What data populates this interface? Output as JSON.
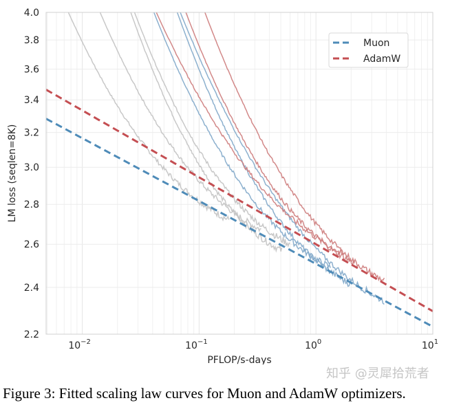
{
  "chart_data": {
    "type": "line",
    "xlabel": "PFLOP/s-days",
    "ylabel": "LM loss (seqlen=8K)",
    "xscale": "log",
    "yscale": "log",
    "xlim": [
      0.0049,
      10
    ],
    "ylim": [
      2.2,
      4.0
    ],
    "x_ticks": [
      {
        "base": "10",
        "exp": "−2",
        "value": 0.01
      },
      {
        "base": "10",
        "exp": "−1",
        "value": 0.1
      },
      {
        "base": "10",
        "exp": "0",
        "value": 1
      },
      {
        "base": "10",
        "exp": "1",
        "value": 10
      }
    ],
    "y_ticks": [
      {
        "label": "2.2",
        "value": 2.2
      },
      {
        "label": "2.4",
        "value": 2.4
      },
      {
        "label": "2.6",
        "value": 2.6
      },
      {
        "label": "2.8",
        "value": 2.8
      },
      {
        "label": "3.0",
        "value": 3.0
      },
      {
        "label": "3.2",
        "value": 3.2
      },
      {
        "label": "3.4",
        "value": 3.4
      },
      {
        "label": "3.6",
        "value": 3.6
      },
      {
        "label": "3.8",
        "value": 3.8
      },
      {
        "label": "4.0",
        "value": 4.0
      }
    ],
    "grid": true,
    "legend_position": "top-right",
    "fits": [
      {
        "name": "Muon",
        "coef": 2.507,
        "exponent": -0.0507,
        "color": "#4e8bb8"
      },
      {
        "name": "AdamW",
        "coef": 2.6,
        "exponent": -0.054,
        "color": "#c44e52"
      }
    ],
    "runs": [
      {
        "group": "gray",
        "start_compute": 0.0076,
        "end_compute": 0.18,
        "end_loss": 2.72
      },
      {
        "group": "gray",
        "start_compute": 0.0142,
        "end_compute": 0.34,
        "end_loss": 2.67
      },
      {
        "group": "gray",
        "start_compute": 0.026,
        "end_compute": 0.51,
        "end_loss": 2.57
      },
      {
        "group": "gray",
        "start_compute": 0.028,
        "end_compute": 0.6,
        "end_loss": 2.6
      },
      {
        "group": "muon",
        "start_compute": 0.041,
        "end_compute": 1.33,
        "end_loss": 2.49
      },
      {
        "group": "muon",
        "start_compute": 0.065,
        "end_compute": 2.05,
        "end_loss": 2.41
      },
      {
        "group": "muon",
        "start_compute": 0.069,
        "end_compute": 3.84,
        "end_loss": 2.34
      },
      {
        "group": "adamw",
        "start_compute": 0.043,
        "end_compute": 1.75,
        "end_loss": 2.55
      },
      {
        "group": "adamw",
        "start_compute": 0.077,
        "end_compute": 2.14,
        "end_loss": 2.51
      },
      {
        "group": "adamw",
        "start_compute": 0.112,
        "end_compute": 3.84,
        "end_loss": 2.43
      }
    ],
    "run_colors": {
      "gray": "#c2c2c2",
      "muon": "#7fa7c9",
      "adamw": "#cd7b7b"
    }
  },
  "caption": "Figure 3: Fitted scaling law curves for Muon and AdamW optimizers.",
  "watermark": "知乎 @灵犀拾荒者"
}
